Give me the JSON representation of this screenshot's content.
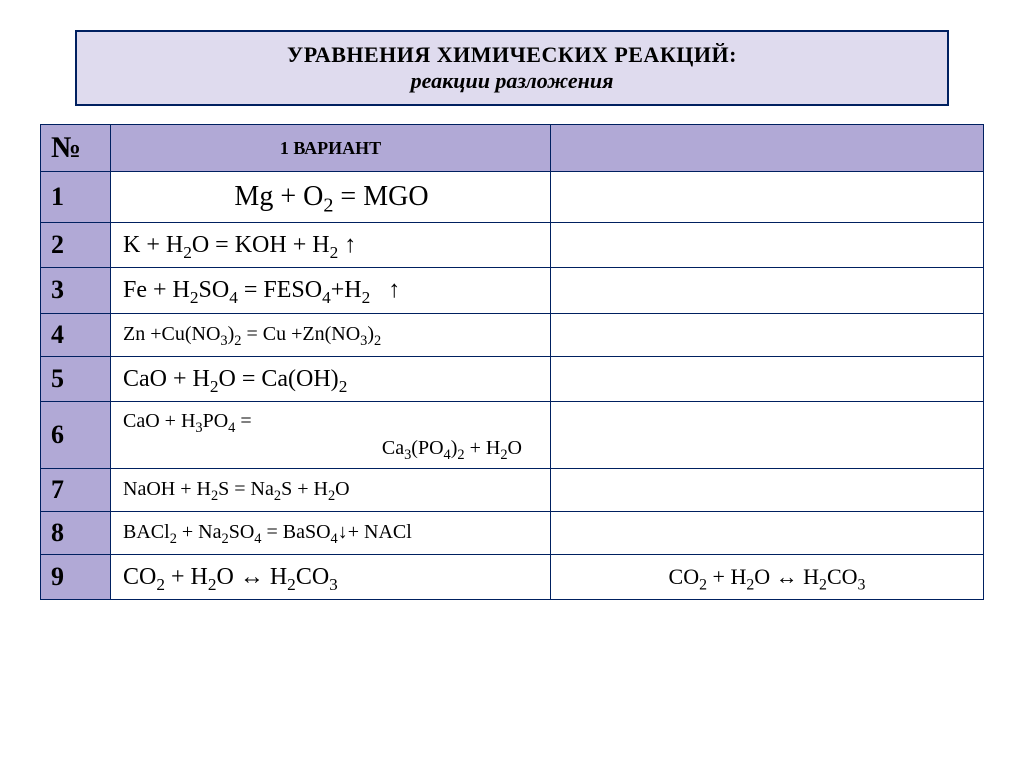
{
  "title": {
    "line1": "УРАВНЕНИЯ ХИМИЧЕСКИХ РЕАКЦИЙ:",
    "line2": "реакции разложения"
  },
  "headers": {
    "num": "№",
    "variant": "1 ВАРИАНТ",
    "blank": ""
  },
  "rows": [
    {
      "n": "1",
      "eq_html": "Mg + O<span class='sub'>2</span> = MGO",
      "size": "big",
      "right": ""
    },
    {
      "n": "2",
      "eq_html": "K + H<span class='sub'>2</span>O = KOH + H<span class='sub'>2</span> ↑",
      "size": "med",
      "right": ""
    },
    {
      "n": "3",
      "eq_html": "Fe + H<span class='sub'>2</span>SO<span class='sub'>4</span> = FESO<span class='sub'>4</span>+H<span class='sub'>2</span>&nbsp;&nbsp;&nbsp;↑",
      "size": "med",
      "right": ""
    },
    {
      "n": "4",
      "eq_html": "Zn +Cu(NO<span class='sub'>3</span>)<span class='sub'>2</span> = Cu +Zn(NO<span class='sub'>3</span>)<span class='sub'>2</span>",
      "size": "small",
      "right": ""
    },
    {
      "n": "5",
      "eq_html": "CaO + H<span class='sub'>2</span>O = Ca(OH)<span class='sub'>2</span>",
      "size": "med",
      "right": ""
    },
    {
      "n": "6",
      "eq_html": "CaO + H<span class='sub'>3</span>PO<span class='sub'>4</span> =<span class='block2'>Ca<span class='sub'>3</span>(PO<span class='sub'>4</span>)<span class='sub'>2</span> + H<span class='sub'>2</span>O</span>",
      "size": "tworow",
      "right": ""
    },
    {
      "n": "7",
      "eq_html": "NaOH + H<span class='sub'>2</span>S = Na<span class='sub'>2</span>S + H<span class='sub'>2</span>O",
      "size": "small",
      "right": ""
    },
    {
      "n": "8",
      "eq_html": "BACl<span class='sub'>2</span> + Na<span class='sub'>2</span>SO<span class='sub'>4</span> = BaSO<span class='sub'>4</span>↓+ NACl",
      "size": "small",
      "right": ""
    },
    {
      "n": "9",
      "eq_html": "CO<span class='sub'>2</span> + H<span class='sub'>2</span>O ↔ H<span class='sub'>2</span>CO<span class='sub'>3</span>",
      "size": "med",
      "right_html": "CO<span class='sub'>2</span> + H<span class='sub'>2</span>O ↔ H<span class='sub'>2</span>CO<span class='sub'>3</span>"
    }
  ],
  "style": {
    "header_bg": "#b1a9d6",
    "title_bg": "#dfdbee",
    "border_color": "#002060"
  }
}
